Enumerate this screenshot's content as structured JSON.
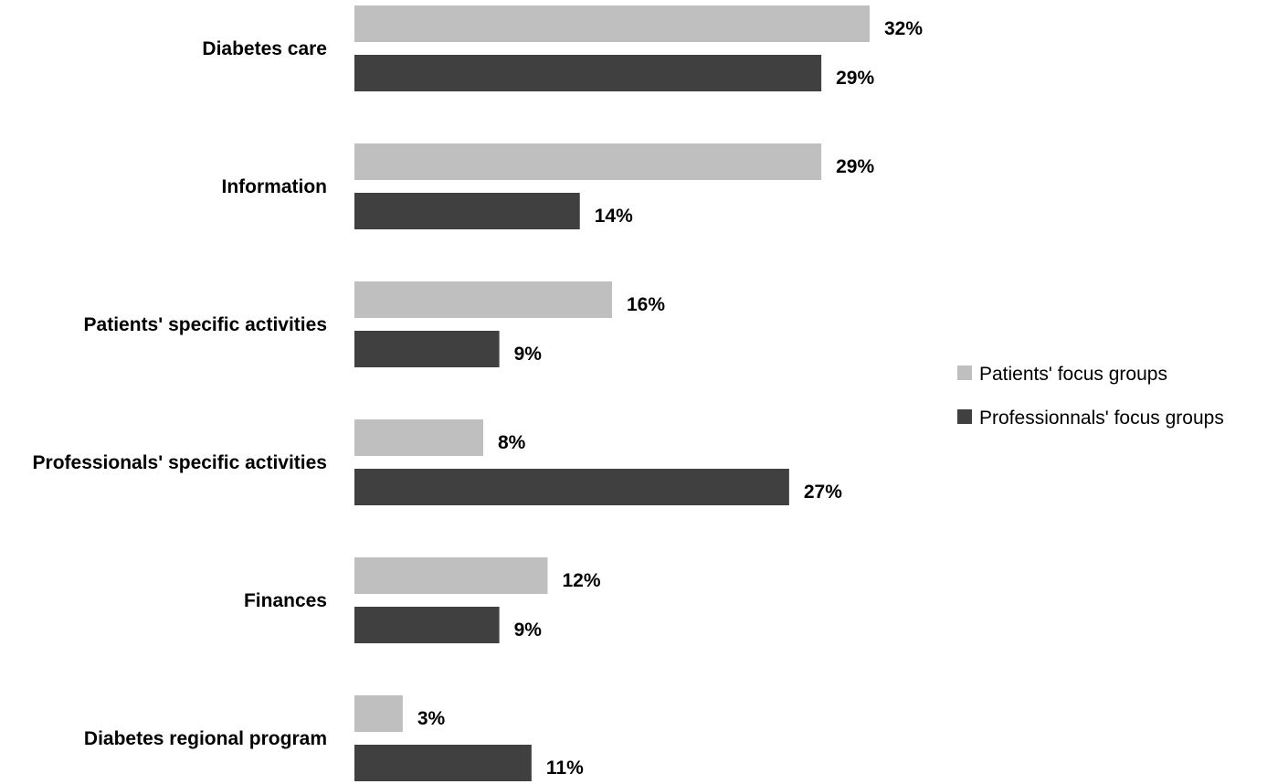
{
  "chart_data": {
    "type": "bar",
    "orientation": "horizontal",
    "title": "",
    "xlabel": "",
    "ylabel": "",
    "grid": false,
    "legend_position": "right",
    "categories": [
      "Diabetes care",
      "Information",
      "Patients' specific activities",
      "Professionals' specific activities",
      "Finances",
      "Diabetes regional program"
    ],
    "series": [
      {
        "name": "Patients' focus groups",
        "color": "#bfbfbf",
        "values": [
          32,
          29,
          16,
          8,
          12,
          3
        ],
        "labels": [
          "32%",
          "29%",
          "16%",
          "8%",
          "12%",
          "3%"
        ]
      },
      {
        "name": "Professionnals' focus groups",
        "color": "#404040",
        "values": [
          29,
          14,
          9,
          27,
          9,
          11
        ],
        "labels": [
          "29%",
          "14%",
          "9%",
          "27%",
          "9%",
          "11%"
        ]
      }
    ],
    "xlim": [
      0,
      32
    ]
  }
}
